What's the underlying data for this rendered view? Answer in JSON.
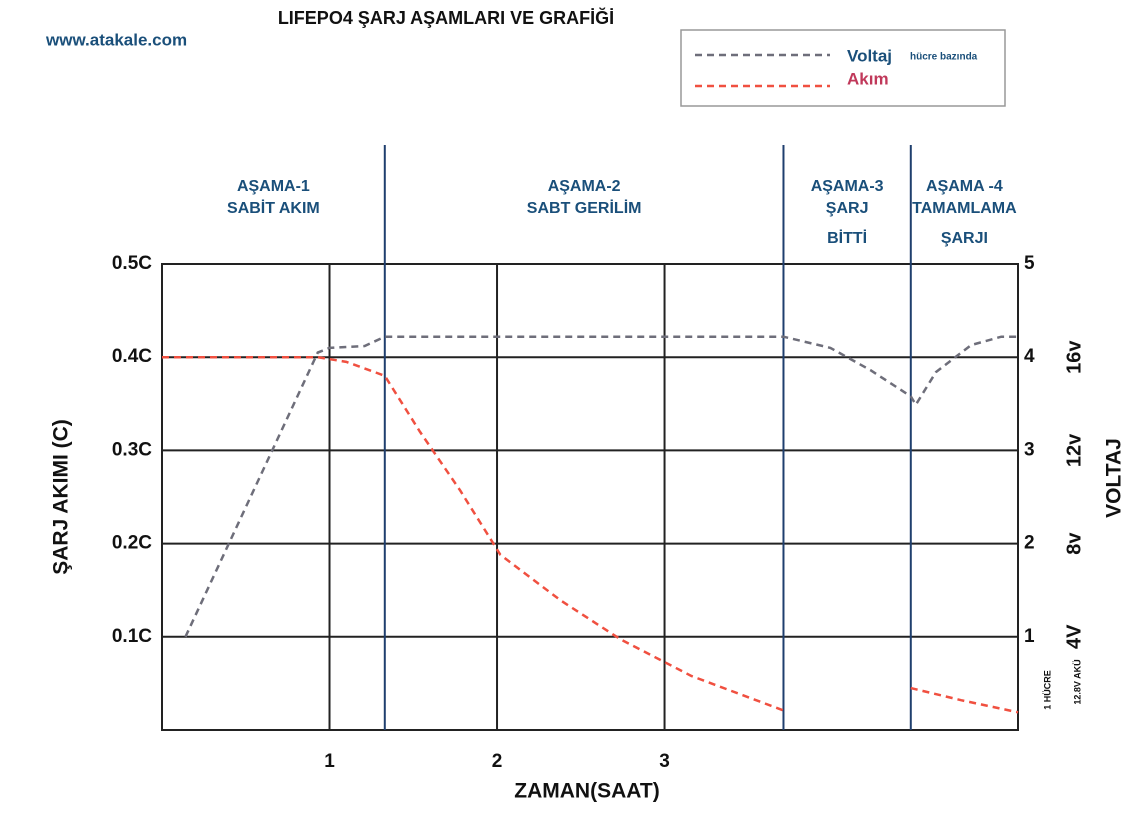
{
  "chart_data": {
    "type": "line",
    "title": "LIFEPO4 ŞARJ AŞAMLARI VE GRAFİĞİ",
    "source": "www.atakale.com",
    "x_label": "ZAMAN(SAAT)",
    "y_label": "ŞARJ AKIMI (C)",
    "y2_label": "VOLTAJ",
    "legend_note": "hücre bazında",
    "y2_pack_captions": [
      "1 HÜCRE",
      "12.8V AKÜ"
    ],
    "xlim": [
      0,
      5.11
    ],
    "xticks": [
      1,
      2,
      3
    ],
    "ylim": [
      0,
      0.5
    ],
    "yticks": [
      {
        "value": 0.1,
        "label": "0.1C"
      },
      {
        "value": 0.2,
        "label": "0.2C"
      },
      {
        "value": 0.3,
        "label": "0.3C"
      },
      {
        "value": 0.4,
        "label": "0.4C"
      },
      {
        "value": 0.5,
        "label": "0.5C"
      }
    ],
    "y2lim": [
      0,
      5
    ],
    "y2ticks": [
      1,
      2,
      3,
      4,
      5
    ],
    "y2ticks_pack": [
      {
        "value": 1,
        "label": "4V"
      },
      {
        "value": 2,
        "label": "8v"
      },
      {
        "value": 3,
        "label": "12v"
      },
      {
        "value": 4,
        "label": "16v"
      }
    ],
    "grid": true,
    "legend": "top-right",
    "phases": [
      {
        "lines": [
          "AŞAMA-1",
          "SABİT AKIM"
        ],
        "end": 1.33
      },
      {
        "lines": [
          "AŞAMA-2",
          "SABT GERİLİM"
        ],
        "end": 3.71
      },
      {
        "lines": [
          "AŞAMA-3",
          "ŞARJ",
          "BİTTİ"
        ],
        "end": 4.47
      },
      {
        "lines": [
          "AŞAMA -4",
          "TAMAMLAMA",
          "ŞARJI"
        ],
        "end": null
      }
    ],
    "phase_color": "#1f3f6e",
    "series": [
      {
        "name": "Voltaj",
        "color": "#6e6e7a",
        "text_color": "#1a4f7a",
        "axis": "y2",
        "x": [
          0.14,
          0.93,
          1.0,
          1.21,
          1.33,
          3.71,
          3.99,
          4.23,
          4.47,
          4.5,
          4.62,
          4.83,
          5.01,
          5.11
        ],
        "values": [
          1.0,
          4.05,
          4.1,
          4.12,
          4.22,
          4.22,
          4.1,
          3.86,
          3.58,
          3.49,
          3.84,
          4.13,
          4.22,
          4.22
        ]
      },
      {
        "name": "Akım",
        "color": "#f05040",
        "text_color": "#c0385a",
        "x": [
          0,
          0.93,
          1.1,
          1.27,
          1.33,
          1.54,
          1.78,
          2.02,
          2.38,
          2.74,
          3.16,
          3.71,
          4.0,
          4.47,
          4.77,
          5.11
        ],
        "values": [
          0.4,
          0.4,
          0.395,
          0.384,
          0.38,
          0.32,
          0.257,
          0.188,
          0.139,
          0.097,
          0.058,
          0.021,
          null,
          0.045,
          0.032,
          0.019
        ]
      }
    ]
  }
}
